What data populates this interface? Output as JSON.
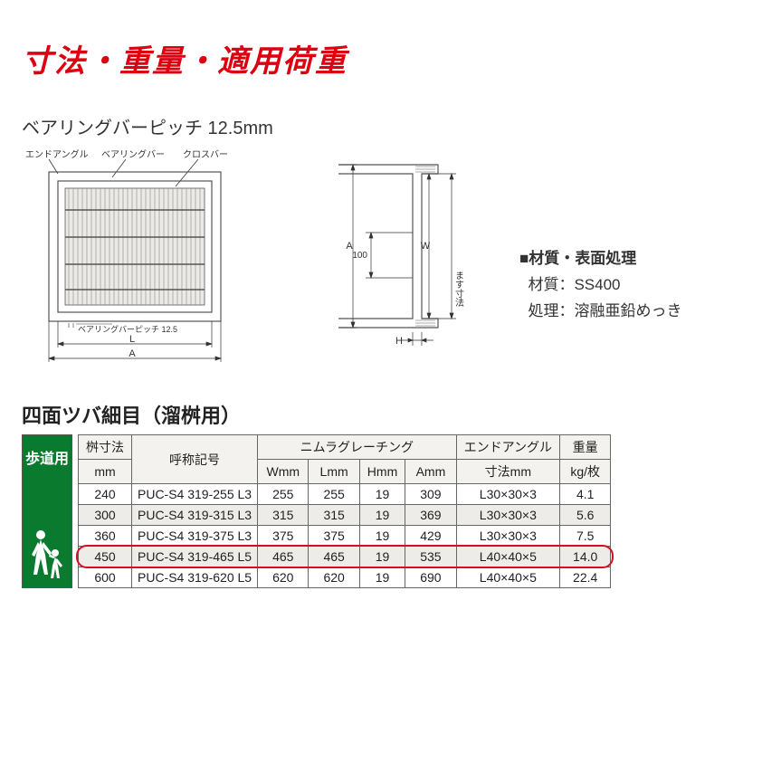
{
  "title": "寸法・重量・適用荷重",
  "pitch_label": "ベアリングバーピッチ 12.5mm",
  "diagram_a": {
    "label_end_angle": "エンドアングル",
    "label_bearing_bar": "ベアリングバー",
    "label_cross_bar": "クロスバー",
    "label_pitch": "ベアリングバーピッチ 12.5",
    "dim_L": "L",
    "dim_A": "A"
  },
  "diagram_b": {
    "dim_A": "A",
    "dim_W": "W",
    "dim_100": "100",
    "dim_H": "H",
    "dim_masu": "ます寸法"
  },
  "material": {
    "heading": "■材質・表面処理",
    "mat_label": "材質：",
    "mat_value": "SS400",
    "treat_label": "処理：",
    "treat_value": "溶融亜鉛めっき"
  },
  "section_title": "四面ツバ細目（溜桝用）",
  "side_label": "歩道用",
  "table": {
    "head_masu": "桝寸法",
    "head_mm": "mm",
    "head_code": "呼称記号",
    "head_group": "ニムラグレーチング",
    "head_W": "Wmm",
    "head_L": "Lmm",
    "head_H": "Hmm",
    "head_A": "Amm",
    "head_angle": "エンドアングル",
    "head_angle2": "寸法mm",
    "head_weight": "重量",
    "head_weight2": "kg/枚",
    "rows": [
      {
        "masu": "240",
        "code": "PUC-S4 319-255 L3",
        "W": "255",
        "L": "255",
        "H": "19",
        "A": "309",
        "angle": "L30×30×3",
        "wt": "4.1",
        "alt": false
      },
      {
        "masu": "300",
        "code": "PUC-S4 319-315 L3",
        "W": "315",
        "L": "315",
        "H": "19",
        "A": "369",
        "angle": "L30×30×3",
        "wt": "5.6",
        "alt": true
      },
      {
        "masu": "360",
        "code": "PUC-S4 319-375 L3",
        "W": "375",
        "L": "375",
        "H": "19",
        "A": "429",
        "angle": "L30×30×3",
        "wt": "7.5",
        "alt": false
      },
      {
        "masu": "450",
        "code": "PUC-S4 319-465 L5",
        "W": "465",
        "L": "465",
        "H": "19",
        "A": "535",
        "angle": "L40×40×5",
        "wt": "14.0",
        "alt": true
      },
      {
        "masu": "600",
        "code": "PUC-S4 319-620 L5",
        "W": "620",
        "L": "620",
        "H": "19",
        "A": "690",
        "angle": "L40×40×5",
        "wt": "22.4",
        "alt": false
      }
    ],
    "highlight_row_index": 3
  },
  "colors": {
    "title_red": "#dd0010",
    "green": "#0a7a2e",
    "highlight_red": "#d01020",
    "border": "#666666",
    "alt_bg": "#eeece8",
    "head_bg": "#f4f2ef"
  }
}
